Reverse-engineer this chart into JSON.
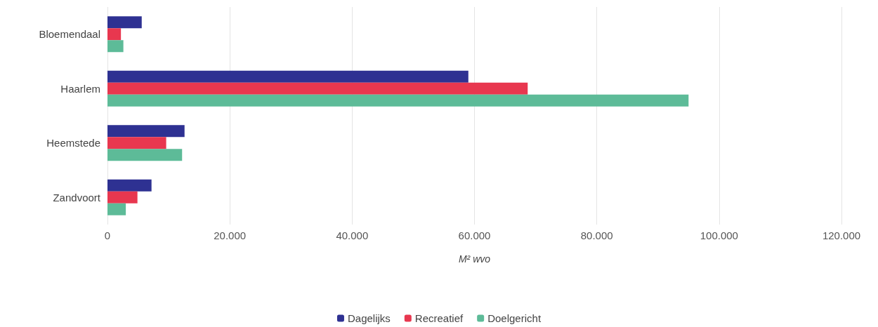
{
  "chart_data": {
    "type": "bar",
    "orientation": "horizontal",
    "xlabel": "M² wvo",
    "categories": [
      "Bloemendaal",
      "Haarlem",
      "Heemstede",
      "Zandvoort"
    ],
    "series": [
      {
        "name": "Dagelijks",
        "color": "#2e3192",
        "values": [
          5600,
          59000,
          12600,
          7200
        ]
      },
      {
        "name": "Recreatief",
        "color": "#e8374f",
        "values": [
          2200,
          68700,
          9600,
          4900
        ]
      },
      {
        "name": "Doelgericht",
        "color": "#5dbb98",
        "values": [
          2600,
          95000,
          12200,
          3000
        ]
      }
    ],
    "xlim": [
      0,
      120000
    ],
    "xticks": [
      0,
      {
        "value": 20000,
        "label": "20.000"
      },
      {
        "value": 40000,
        "label": "40.000"
      },
      {
        "value": 60000,
        "label": "60.000"
      },
      {
        "value": 80000,
        "label": "80.000"
      },
      {
        "value": 100000,
        "label": "100.000"
      },
      {
        "value": 120000,
        "label": "120.000"
      }
    ],
    "grid": "x",
    "legend": "bottom"
  }
}
